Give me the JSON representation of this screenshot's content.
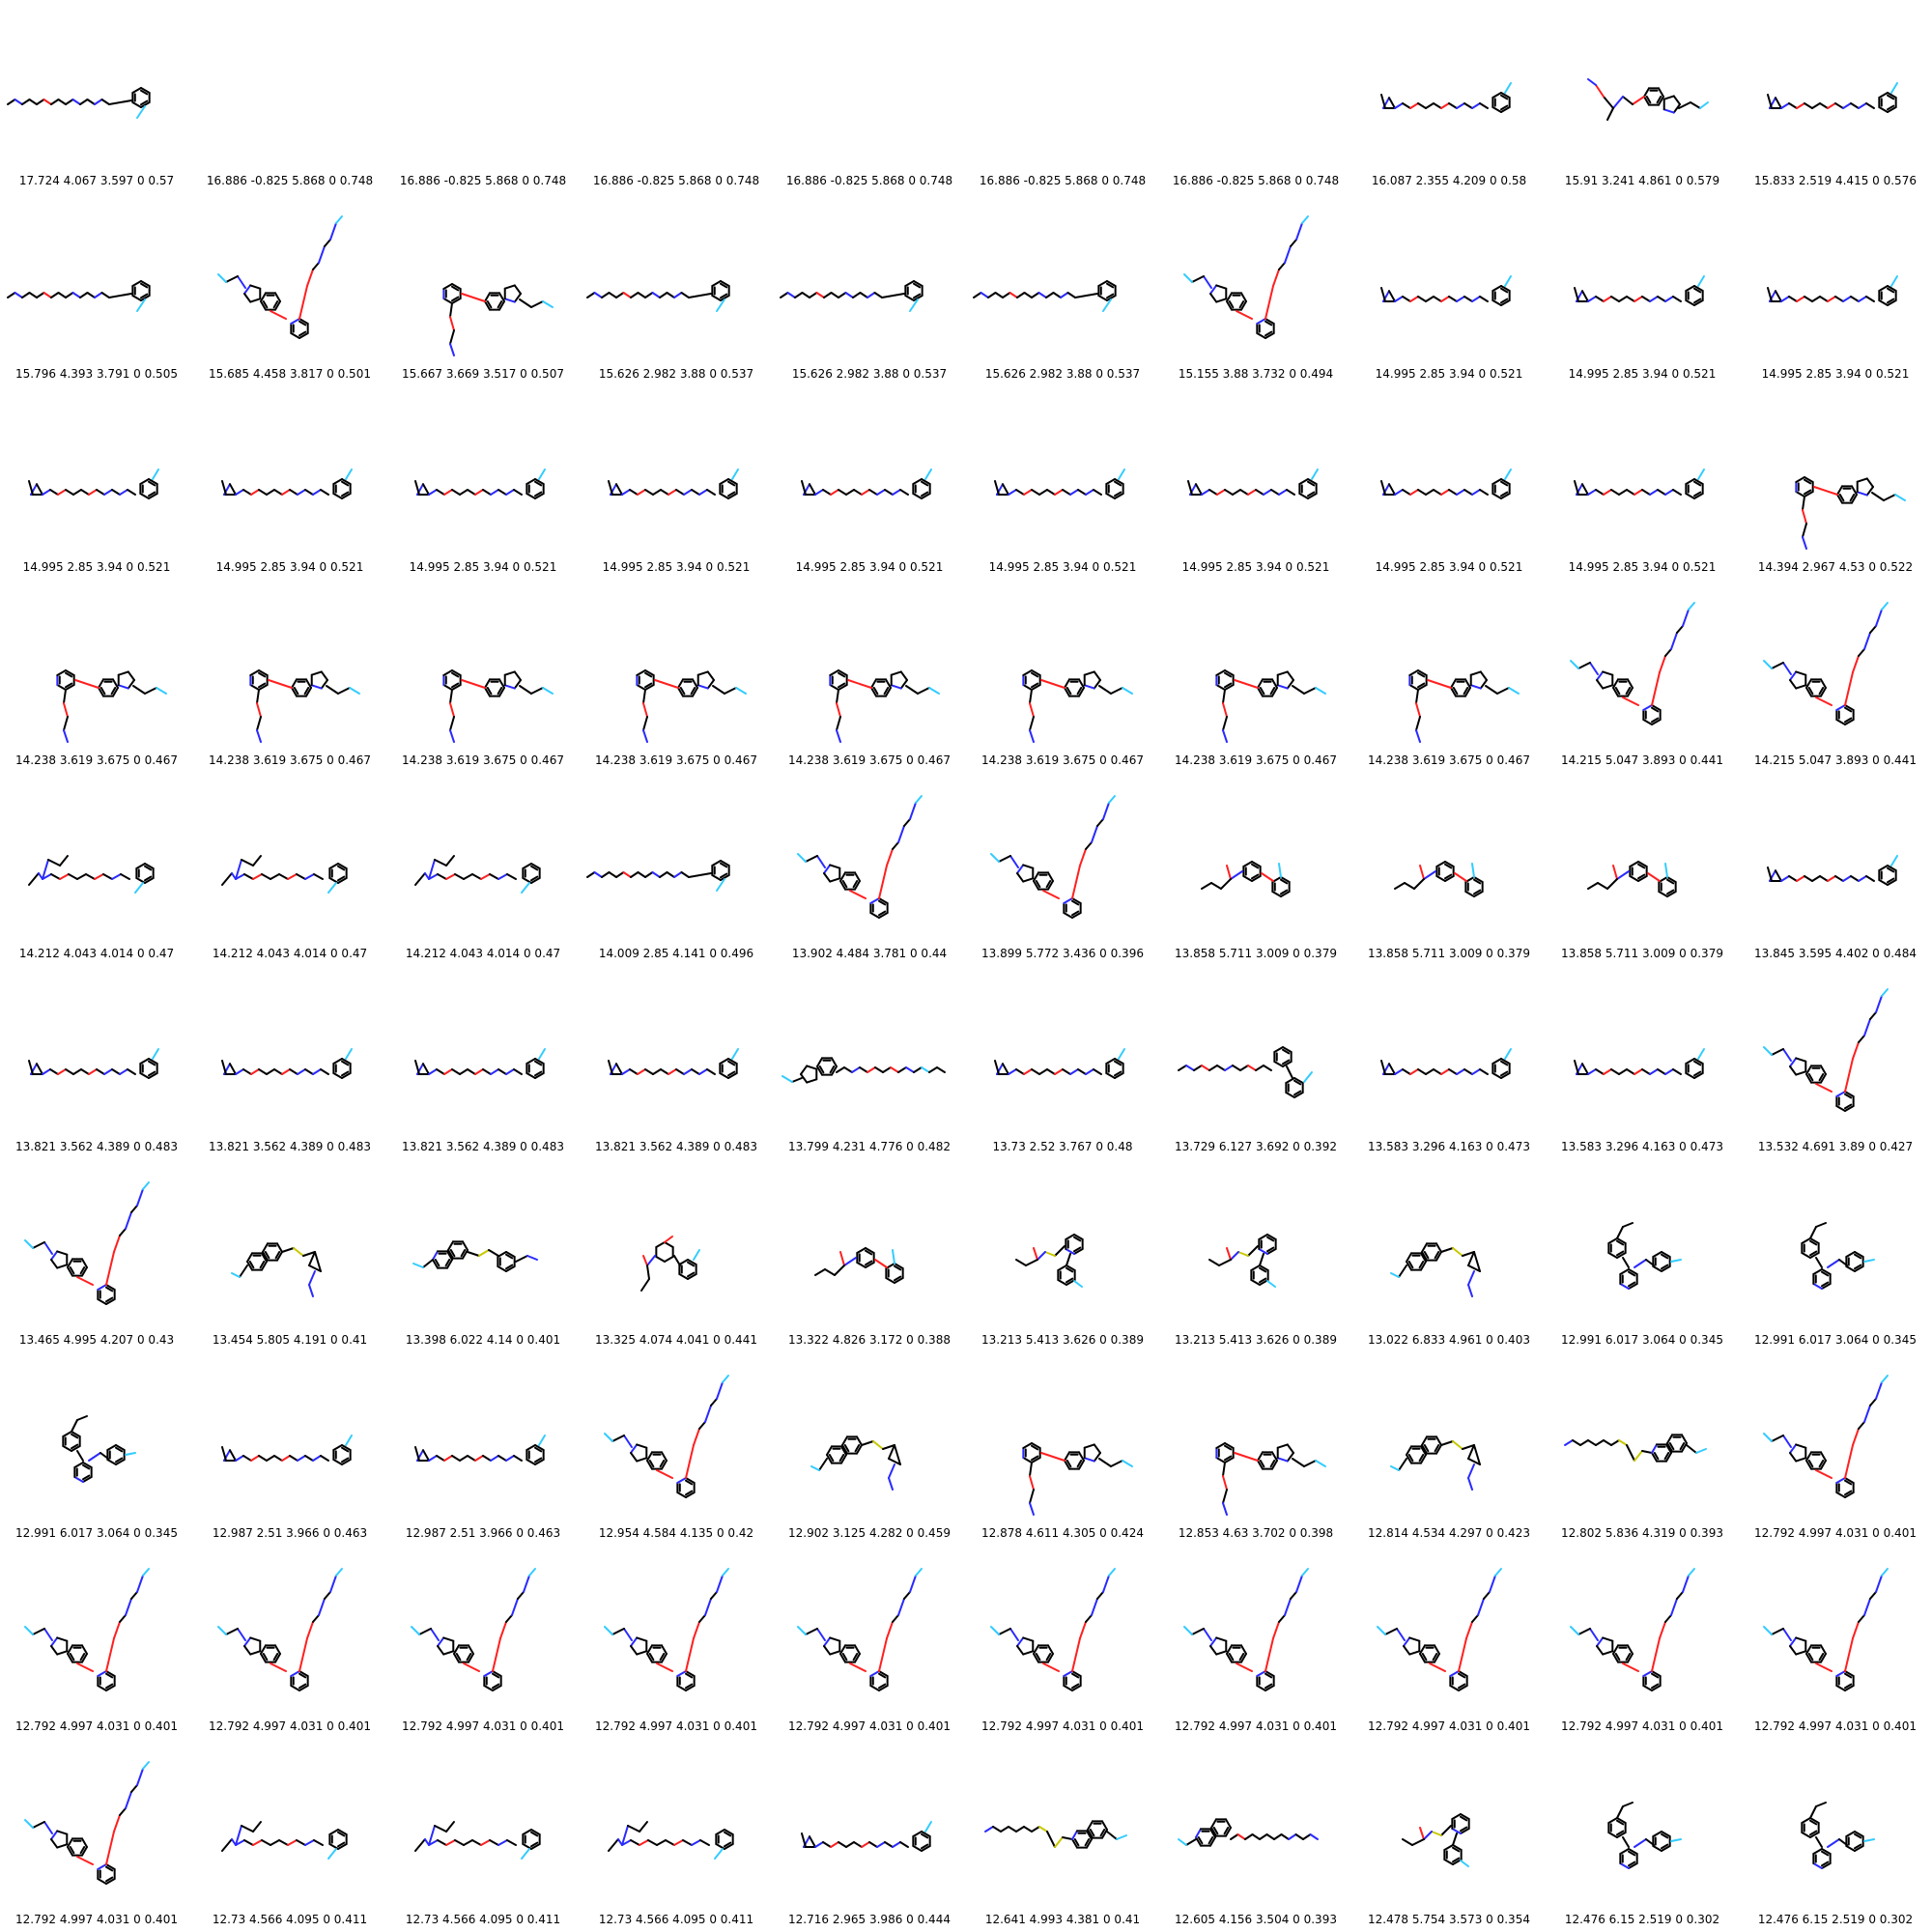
{
  "grid": {
    "columns": 10,
    "rows": 10,
    "cells": [
      {
        "caption": "17.724 4.067 3.597 0 0.57",
        "structure": "chain-phenyl"
      },
      {
        "caption": "16.886 -0.825 5.868 0 0.748",
        "structure": "blank"
      },
      {
        "caption": "16.886 -0.825 5.868 0 0.748",
        "structure": "blank"
      },
      {
        "caption": "16.886 -0.825 5.868 0 0.748",
        "structure": "blank"
      },
      {
        "caption": "16.886 -0.825 5.868 0 0.748",
        "structure": "blank"
      },
      {
        "caption": "16.886 -0.825 5.868 0 0.748",
        "structure": "blank"
      },
      {
        "caption": "16.886 -0.825 5.868 0 0.748",
        "structure": "blank"
      },
      {
        "caption": "16.087 2.355 4.209 0 0.58",
        "structure": "aziridine-chain-phenyl"
      },
      {
        "caption": "15.91 3.241 4.861 0 0.579",
        "structure": "indole-branch"
      },
      {
        "caption": "15.833 2.519 4.415 0 0.576",
        "structure": "aziridine-chain-phenyl"
      },
      {
        "caption": "15.796 4.393 3.791 0 0.505",
        "structure": "chain-phenyl"
      },
      {
        "caption": "15.685 4.458 3.817 0 0.501",
        "structure": "indole-pyridine-up"
      },
      {
        "caption": "15.667 3.669 3.517 0 0.507",
        "structure": "pyridine-indole-down"
      },
      {
        "caption": "15.626 2.982 3.88 0 0.537",
        "structure": "chain-phenyl"
      },
      {
        "caption": "15.626 2.982 3.88 0 0.537",
        "structure": "chain-phenyl"
      },
      {
        "caption": "15.626 2.982 3.88 0 0.537",
        "structure": "chain-phenyl"
      },
      {
        "caption": "15.155 3.88 3.732 0 0.494",
        "structure": "indole-pyridine-up"
      },
      {
        "caption": "14.995 2.85 3.94 0 0.521",
        "structure": "aziridine-chain-phenyl"
      },
      {
        "caption": "14.995 2.85 3.94 0 0.521",
        "structure": "aziridine-chain-phenyl"
      },
      {
        "caption": "14.995 2.85 3.94 0 0.521",
        "structure": "aziridine-chain-phenyl"
      },
      {
        "caption": "14.995 2.85 3.94 0 0.521",
        "structure": "aziridine-chain-phenyl"
      },
      {
        "caption": "14.995 2.85 3.94 0 0.521",
        "structure": "aziridine-chain-phenyl"
      },
      {
        "caption": "14.995 2.85 3.94 0 0.521",
        "structure": "aziridine-chain-phenyl"
      },
      {
        "caption": "14.995 2.85 3.94 0 0.521",
        "structure": "aziridine-chain-phenyl"
      },
      {
        "caption": "14.995 2.85 3.94 0 0.521",
        "structure": "aziridine-chain-phenyl"
      },
      {
        "caption": "14.995 2.85 3.94 0 0.521",
        "structure": "aziridine-chain-phenyl"
      },
      {
        "caption": "14.995 2.85 3.94 0 0.521",
        "structure": "aziridine-chain-phenyl"
      },
      {
        "caption": "14.995 2.85 3.94 0 0.521",
        "structure": "aziridine-chain-phenyl"
      },
      {
        "caption": "14.995 2.85 3.94 0 0.521",
        "structure": "aziridine-chain-phenyl"
      },
      {
        "caption": "14.394 2.967 4.53 0 0.522",
        "structure": "pyridine-indole-down"
      },
      {
        "caption": "14.238 3.619 3.675 0 0.467",
        "structure": "pyridine-indole-down"
      },
      {
        "caption": "14.238 3.619 3.675 0 0.467",
        "structure": "pyridine-indole-down"
      },
      {
        "caption": "14.238 3.619 3.675 0 0.467",
        "structure": "pyridine-indole-down"
      },
      {
        "caption": "14.238 3.619 3.675 0 0.467",
        "structure": "pyridine-indole-down"
      },
      {
        "caption": "14.238 3.619 3.675 0 0.467",
        "structure": "pyridine-indole-down"
      },
      {
        "caption": "14.238 3.619 3.675 0 0.467",
        "structure": "pyridine-indole-down"
      },
      {
        "caption": "14.238 3.619 3.675 0 0.467",
        "structure": "pyridine-indole-down"
      },
      {
        "caption": "14.238 3.619 3.675 0 0.467",
        "structure": "pyridine-indole-down"
      },
      {
        "caption": "14.215 5.047 3.893 0 0.441",
        "structure": "indole-pyridine-up"
      },
      {
        "caption": "14.215 5.047 3.893 0 0.441",
        "structure": "indole-pyridine-up"
      },
      {
        "caption": "14.212 4.043 4.014 0 0.47",
        "structure": "branched-chain-phenyl"
      },
      {
        "caption": "14.212 4.043 4.014 0 0.47",
        "structure": "branched-chain-phenyl"
      },
      {
        "caption": "14.212 4.043 4.014 0 0.47",
        "structure": "branched-chain-phenyl"
      },
      {
        "caption": "14.009 2.85 4.141 0 0.496",
        "structure": "chain-phenyl"
      },
      {
        "caption": "13.902 4.484 3.781 0 0.44",
        "structure": "indole-pyridine-up"
      },
      {
        "caption": "13.899 5.772 3.436 0 0.396",
        "structure": "indole-pyridine-up"
      },
      {
        "caption": "13.858 5.711 3.009 0 0.379",
        "structure": "biphenyl-ether"
      },
      {
        "caption": "13.858 5.711 3.009 0 0.379",
        "structure": "biphenyl-ether"
      },
      {
        "caption": "13.858 5.711 3.009 0 0.379",
        "structure": "biphenyl-ether"
      },
      {
        "caption": "13.845 3.595 4.402 0 0.484",
        "structure": "aziridine-chain-phenyl"
      },
      {
        "caption": "13.821 3.562 4.389 0 0.483",
        "structure": "aziridine-chain-phenyl"
      },
      {
        "caption": "13.821 3.562 4.389 0 0.483",
        "structure": "aziridine-chain-phenyl"
      },
      {
        "caption": "13.821 3.562 4.389 0 0.483",
        "structure": "aziridine-chain-phenyl"
      },
      {
        "caption": "13.821 3.562 4.389 0 0.483",
        "structure": "aziridine-chain-phenyl"
      },
      {
        "caption": "13.799 4.231 4.776 0 0.482",
        "structure": "indole-long-chain"
      },
      {
        "caption": "13.73 2.52 3.767 0 0.48",
        "structure": "aziridine-chain-phenyl"
      },
      {
        "caption": "13.729 6.127 3.692 0 0.392",
        "structure": "chain-biphenyl"
      },
      {
        "caption": "13.583 3.296 4.163 0 0.473",
        "structure": "aziridine-chain-phenyl"
      },
      {
        "caption": "13.583 3.296 4.163 0 0.473",
        "structure": "aziridine-chain-phenyl"
      },
      {
        "caption": "13.532 4.691 3.89 0 0.427",
        "structure": "indole-pyridine-up"
      },
      {
        "caption": "13.465 4.995 4.207 0 0.43",
        "structure": "indole-pyridine-up"
      },
      {
        "caption": "13.454 5.805 4.191 0 0.41",
        "structure": "naphthalene-cyclopropane"
      },
      {
        "caption": "13.398 6.022 4.14 0 0.401",
        "structure": "quinoline-thio-phenyl"
      },
      {
        "caption": "13.325 4.074 4.041 0 0.441",
        "structure": "oxane-phenyl"
      },
      {
        "caption": "13.322 4.826 3.172 0 0.388",
        "structure": "biphenyl-ether"
      },
      {
        "caption": "13.213 5.413 3.626 0 0.389",
        "structure": "pyridine-phenyl-amide"
      },
      {
        "caption": "13.213 5.413 3.626 0 0.389",
        "structure": "pyridine-phenyl-amide"
      },
      {
        "caption": "13.022 6.833 4.961 0 0.403",
        "structure": "naphthalene-cyclopropane"
      },
      {
        "caption": "12.991 6.017 3.064 0 0.345",
        "structure": "triaryl"
      },
      {
        "caption": "12.991 6.017 3.064 0 0.345",
        "structure": "triaryl"
      },
      {
        "caption": "12.991 6.017 3.064 0 0.345",
        "structure": "triaryl"
      },
      {
        "caption": "12.987 2.51 3.966 0 0.463",
        "structure": "aziridine-chain-phenyl"
      },
      {
        "caption": "12.987 2.51 3.966 0 0.463",
        "structure": "aziridine-chain-phenyl"
      },
      {
        "caption": "12.954 4.584 4.135 0 0.42",
        "structure": "indole-pyridine-up"
      },
      {
        "caption": "12.902 3.125 4.282 0 0.459",
        "structure": "naphthalene-cyclopropane"
      },
      {
        "caption": "12.878 4.611 4.305 0 0.424",
        "structure": "pyridine-indole-down"
      },
      {
        "caption": "12.853 4.63 3.702 0 0.398",
        "structure": "pyridine-indole-down"
      },
      {
        "caption": "12.814 4.534 4.297 0 0.423",
        "structure": "naphthalene-cyclopropane"
      },
      {
        "caption": "12.802 5.836 4.319 0 0.393",
        "structure": "chain-quinoline"
      },
      {
        "caption": "12.792 4.997 4.031 0 0.401",
        "structure": "indole-pyridine-up"
      },
      {
        "caption": "12.792 4.997 4.031 0 0.401",
        "structure": "indole-pyridine-up"
      },
      {
        "caption": "12.792 4.997 4.031 0 0.401",
        "structure": "indole-pyridine-up"
      },
      {
        "caption": "12.792 4.997 4.031 0 0.401",
        "structure": "indole-pyridine-up"
      },
      {
        "caption": "12.792 4.997 4.031 0 0.401",
        "structure": "indole-pyridine-up"
      },
      {
        "caption": "12.792 4.997 4.031 0 0.401",
        "structure": "indole-pyridine-up"
      },
      {
        "caption": "12.792 4.997 4.031 0 0.401",
        "structure": "indole-pyridine-up"
      },
      {
        "caption": "12.792 4.997 4.031 0 0.401",
        "structure": "indole-pyridine-up"
      },
      {
        "caption": "12.792 4.997 4.031 0 0.401",
        "structure": "indole-pyridine-up"
      },
      {
        "caption": "12.792 4.997 4.031 0 0.401",
        "structure": "indole-pyridine-up"
      },
      {
        "caption": "12.792 4.997 4.031 0 0.401",
        "structure": "indole-pyridine-up"
      },
      {
        "caption": "12.792 4.997 4.031 0 0.401",
        "structure": "indole-pyridine-up"
      },
      {
        "caption": "12.73 4.566 4.095 0 0.411",
        "structure": "branched-chain-phenyl"
      },
      {
        "caption": "12.73 4.566 4.095 0 0.411",
        "structure": "branched-chain-phenyl"
      },
      {
        "caption": "12.73 4.566 4.095 0 0.411",
        "structure": "branched-chain-phenyl"
      },
      {
        "caption": "12.716 2.965 3.986 0 0.444",
        "structure": "aziridine-chain-phenyl"
      },
      {
        "caption": "12.641 4.993 4.381 0 0.41",
        "structure": "chain-quinoline"
      },
      {
        "caption": "12.605 4.156 3.504 0 0.393",
        "structure": "quinoline-long-chain"
      },
      {
        "caption": "12.478 5.754 3.573 0 0.354",
        "structure": "pyridine-phenyl-amide"
      },
      {
        "caption": "12.476 6.15 2.519 0 0.302",
        "structure": "triaryl"
      },
      {
        "caption": "12.476 6.15 2.519 0 0.302",
        "structure": "triaryl"
      }
    ]
  },
  "colors": {
    "bond": "#000000",
    "nitrogen": "#2a2aff",
    "oxygen": "#ff2020",
    "sulfur": "#c8c800",
    "fluorine": "#33ccff",
    "caption": "#000000"
  }
}
